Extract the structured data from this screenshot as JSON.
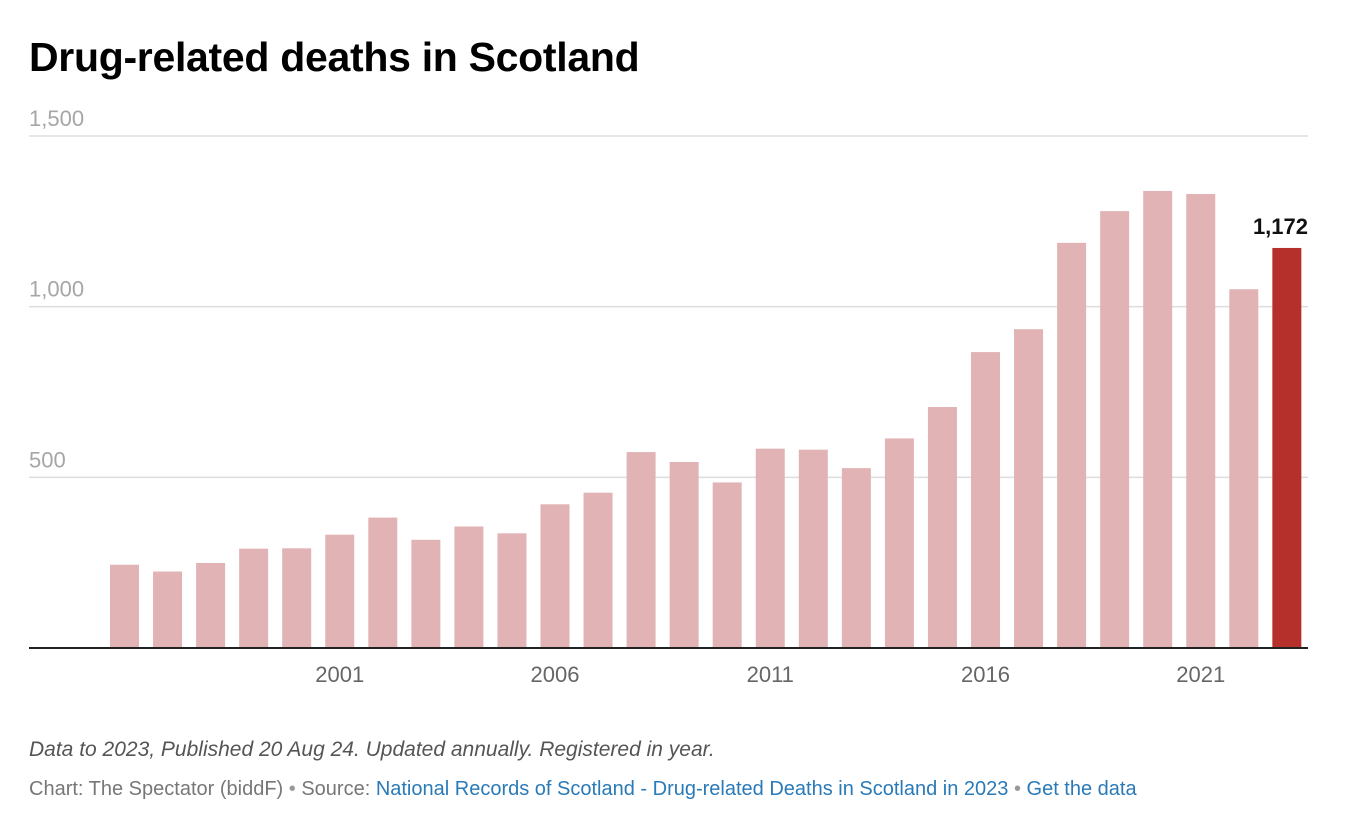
{
  "header": {
    "title": "Drug-related deaths in Scotland"
  },
  "chart_data": {
    "type": "bar",
    "title": "Drug-related deaths in Scotland",
    "categories": [
      "1996",
      "1997",
      "1998",
      "1999",
      "2000",
      "2001",
      "2002",
      "2003",
      "2004",
      "2005",
      "2006",
      "2007",
      "2008",
      "2009",
      "2010",
      "2011",
      "2012",
      "2013",
      "2014",
      "2015",
      "2016",
      "2017",
      "2018",
      "2019",
      "2020",
      "2021",
      "2022",
      "2023"
    ],
    "values": [
      244,
      224,
      249,
      291,
      292,
      332,
      382,
      317,
      356,
      336,
      421,
      455,
      574,
      545,
      485,
      584,
      581,
      527,
      614,
      706,
      867,
      934,
      1187,
      1280,
      1339,
      1330,
      1051,
      1172
    ],
    "highlight_index": 27,
    "highlight_label": "1,172",
    "ylim": [
      0,
      1500
    ],
    "yticks": [
      500,
      1000,
      1500
    ],
    "ytick_labels": [
      "500",
      "1,000",
      "1,500"
    ],
    "xtick_labels": [
      "2001",
      "2006",
      "2011",
      "2016",
      "2021"
    ],
    "xlabel": "",
    "ylabel": "",
    "colors": {
      "bar": "#e1b3b4",
      "highlight": "#b5302a",
      "grid": "#dddddd",
      "axis": "#222222",
      "tick_text": "#a6a6a6",
      "xtick_text": "#666666"
    }
  },
  "footer": {
    "note": "Data to 2023, Published 20 Aug 24. Updated annually. Registered in year.",
    "chart_credit": "Chart: The Spectator (biddF)",
    "bullet1": " • ",
    "source_prefix": "Source: ",
    "source_link": "National Records of Scotland - Drug-related Deaths in Scotland in 2023",
    "bullet2": " • ",
    "get_data": "Get the data"
  }
}
